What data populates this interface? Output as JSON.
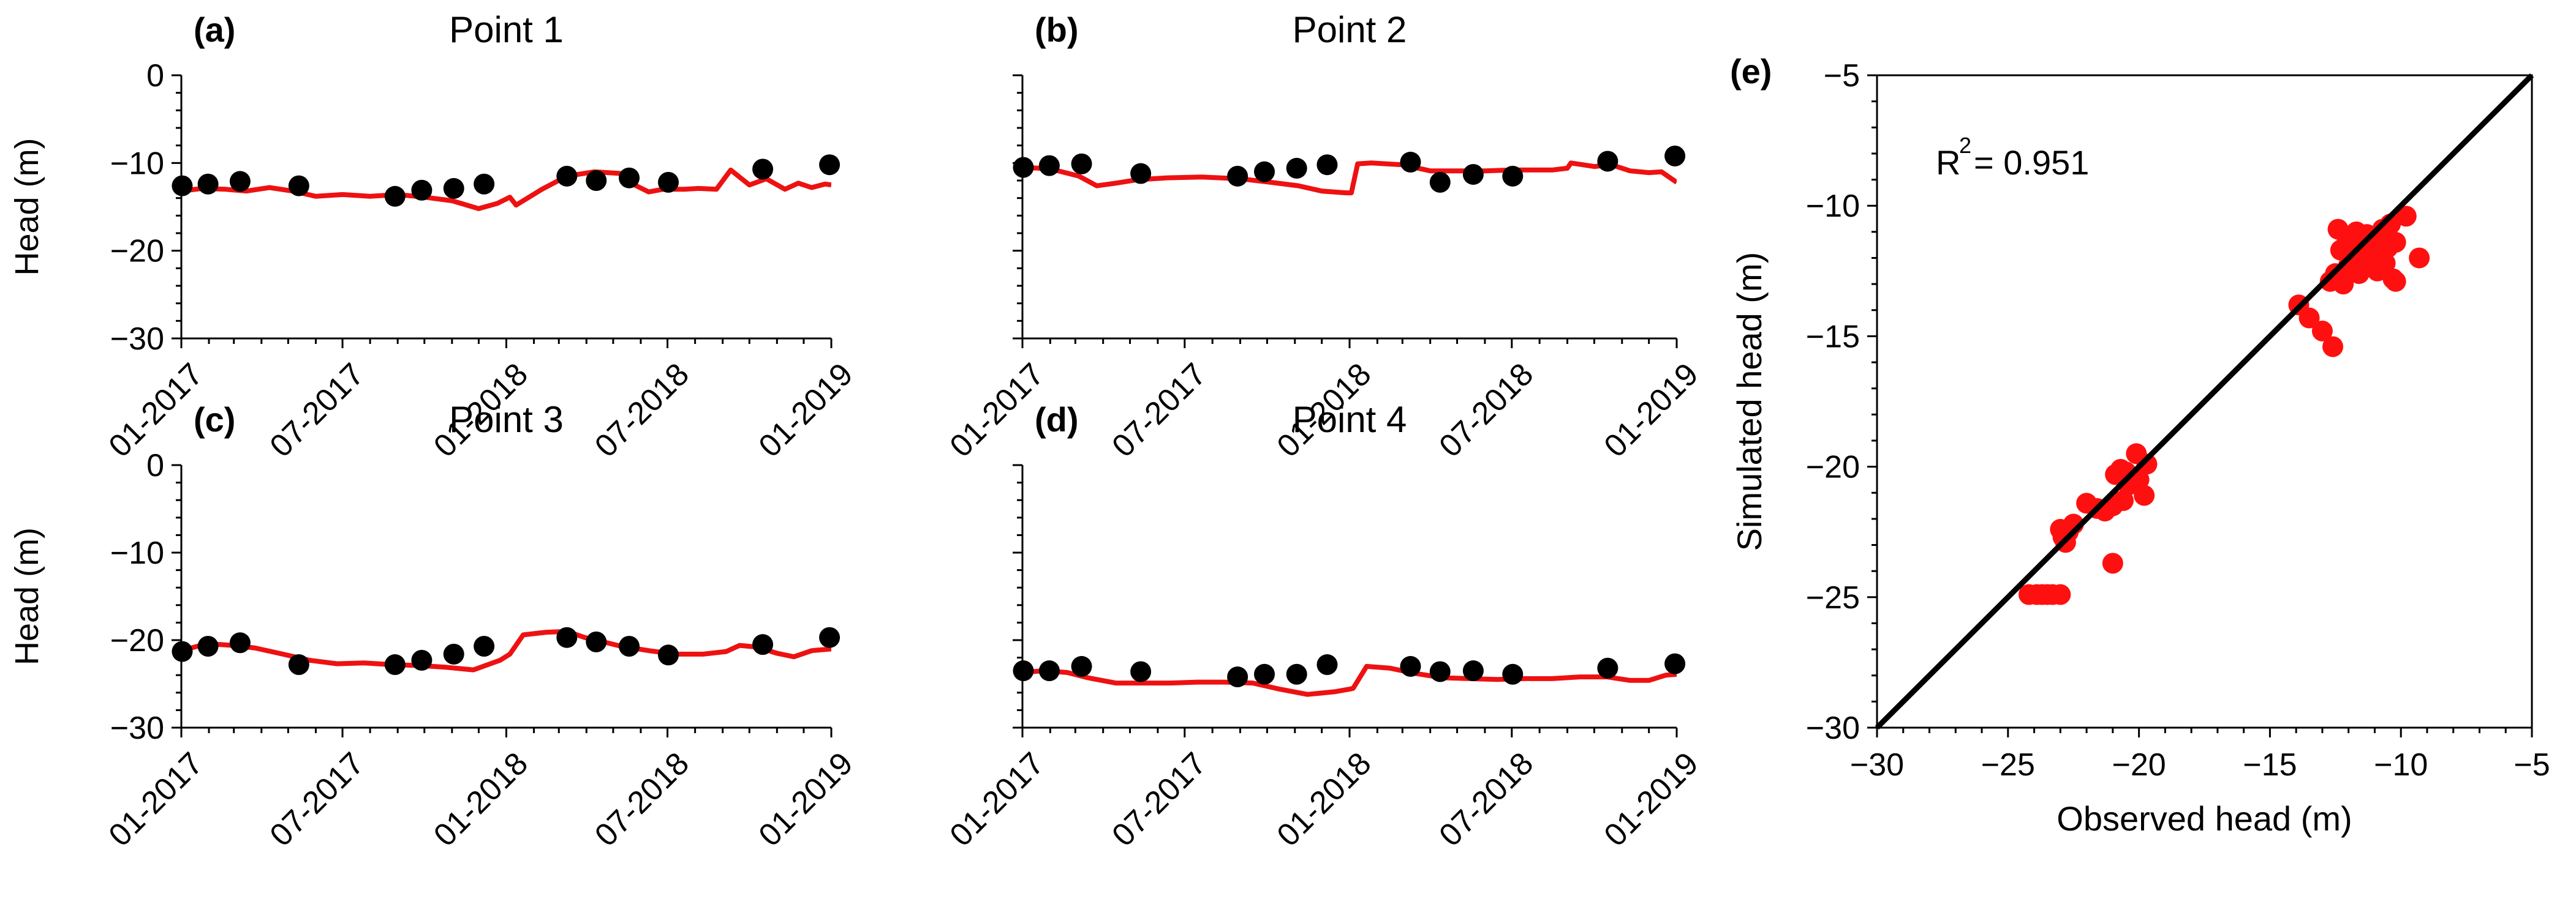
{
  "colors": {
    "observed": "#000000",
    "simulated": "#ee1111",
    "scatter": "#ff1010",
    "identity_line": "#000000"
  },
  "chart_data": [
    {
      "type": "line",
      "panel_label": "(a)",
      "title": "Point 1",
      "ylabel": "Head (m)",
      "xlabel": "",
      "xlim": [
        "2017-01-01",
        "2019-01-01"
      ],
      "ylim": [
        -30,
        0
      ],
      "yticks": [
        0,
        -10,
        -20,
        -30
      ],
      "ytick_labels": [
        "0",
        "−10",
        "−20",
        "−30"
      ],
      "xticks": [
        "2017-01-01",
        "2017-07-01",
        "2018-01-01",
        "2018-07-01",
        "2019-01-01"
      ],
      "xtick_labels": [
        "01-2017",
        "07-2017",
        "01-2018",
        "07-2018",
        "01-2019"
      ],
      "grid": false,
      "series": [
        {
          "role": "observed",
          "style": "markers",
          "x": [
            "2017-01-02",
            "2017-01-31",
            "2017-03-08",
            "2017-05-13",
            "2017-08-29",
            "2017-09-28",
            "2017-11-03",
            "2017-12-07",
            "2018-03-10",
            "2018-04-12",
            "2018-05-19",
            "2018-07-02",
            "2018-10-16",
            "2018-12-30"
          ],
          "y": [
            -12.6,
            -12.4,
            -12.1,
            -12.6,
            -13.8,
            -13.1,
            -12.9,
            -12.4,
            -11.5,
            -12.0,
            -11.7,
            -12.2,
            -10.7,
            -10.2
          ]
        },
        {
          "role": "simulated",
          "style": "line",
          "x": [
            "2017-01-01",
            "2017-01-25",
            "2017-02-20",
            "2017-03-15",
            "2017-04-10",
            "2017-05-06",
            "2017-06-01",
            "2017-07-01",
            "2017-08-01",
            "2017-09-01",
            "2017-10-01",
            "2017-11-01",
            "2017-12-01",
            "2017-12-22",
            "2018-01-05",
            "2018-01-12",
            "2018-02-10",
            "2018-03-10",
            "2018-04-10",
            "2018-05-10",
            "2018-05-25",
            "2018-06-10",
            "2018-07-01",
            "2018-07-10",
            "2018-07-20",
            "2018-08-05",
            "2018-08-25",
            "2018-09-10",
            "2018-10-01",
            "2018-10-20",
            "2018-11-10",
            "2018-11-25",
            "2018-12-10",
            "2018-12-25",
            "2019-01-01"
          ],
          "y": [
            -13.2,
            -12.9,
            -13.0,
            -13.2,
            -12.8,
            -13.2,
            -13.8,
            -13.6,
            -13.8,
            -13.6,
            -13.9,
            -14.3,
            -15.2,
            -14.6,
            -13.9,
            -14.8,
            -13.0,
            -11.5,
            -11.0,
            -11.2,
            -12.5,
            -13.3,
            -12.9,
            -13.0,
            -13.0,
            -12.9,
            -13.0,
            -10.8,
            -12.5,
            -11.8,
            -13.0,
            -12.3,
            -12.8,
            -12.4,
            -12.5
          ]
        }
      ]
    },
    {
      "type": "line",
      "panel_label": "(b)",
      "title": "Point 2",
      "ylabel": "",
      "xlabel": "",
      "xlim": [
        "2017-01-01",
        "2019-01-01"
      ],
      "ylim": [
        -30,
        0
      ],
      "yticks": [
        0,
        -10,
        -20,
        -30
      ],
      "ytick_labels": [],
      "xticks": [
        "2017-01-01",
        "2017-07-01",
        "2018-01-01",
        "2018-07-01",
        "2019-01-01"
      ],
      "xtick_labels": [
        "01-2017",
        "07-2017",
        "01-2018",
        "07-2018",
        "01-2019"
      ],
      "grid": false,
      "series": [
        {
          "role": "observed",
          "style": "markers",
          "x": [
            "2017-01-02",
            "2017-01-31",
            "2017-03-08",
            "2017-05-13",
            "2017-08-29",
            "2017-09-28",
            "2017-11-03",
            "2017-12-07",
            "2018-03-10",
            "2018-04-12",
            "2018-05-19",
            "2018-07-02",
            "2018-10-16",
            "2018-12-30"
          ],
          "y": [
            -10.5,
            -10.3,
            -10.1,
            -11.2,
            -11.5,
            -11.0,
            -10.6,
            -10.2,
            -9.9,
            -12.2,
            -11.3,
            -11.5,
            -9.8,
            -9.2
          ]
        },
        {
          "role": "simulated",
          "style": "line",
          "x": [
            "2017-01-01",
            "2017-01-20",
            "2017-02-10",
            "2017-03-05",
            "2017-03-25",
            "2017-04-15",
            "2017-05-10",
            "2017-06-10",
            "2017-07-20",
            "2017-09-01",
            "2017-10-05",
            "2017-11-05",
            "2017-12-01",
            "2017-12-28",
            "2018-01-03",
            "2018-01-10",
            "2018-01-25",
            "2018-03-01",
            "2018-04-01",
            "2018-05-01",
            "2018-06-01",
            "2018-07-01",
            "2018-08-15",
            "2018-09-01",
            "2018-09-05",
            "2018-10-01",
            "2018-10-20",
            "2018-11-10",
            "2018-12-01",
            "2018-12-15",
            "2019-01-01"
          ],
          "y": [
            -10.5,
            -10.6,
            -10.9,
            -11.5,
            -12.6,
            -12.3,
            -11.9,
            -11.7,
            -11.6,
            -11.8,
            -12.2,
            -12.6,
            -13.2,
            -13.4,
            -13.4,
            -10.1,
            -10.0,
            -10.2,
            -10.9,
            -10.9,
            -10.9,
            -10.8,
            -10.8,
            -10.6,
            -10.0,
            -10.4,
            -10.2,
            -10.9,
            -11.1,
            -11.0,
            -12.2
          ]
        }
      ]
    },
    {
      "type": "line",
      "panel_label": "(c)",
      "title": "Point 3",
      "ylabel": "Head (m)",
      "xlabel": "",
      "xlim": [
        "2017-01-01",
        "2019-01-01"
      ],
      "ylim": [
        -30,
        0
      ],
      "yticks": [
        0,
        -10,
        -20,
        -30
      ],
      "ytick_labels": [
        "0",
        "−10",
        "−20",
        "−30"
      ],
      "xticks": [
        "2017-01-01",
        "2017-07-01",
        "2018-01-01",
        "2018-07-01",
        "2019-01-01"
      ],
      "xtick_labels": [
        "01-2017",
        "07-2017",
        "01-2018",
        "07-2018",
        "01-2019"
      ],
      "grid": false,
      "series": [
        {
          "role": "observed",
          "style": "markers",
          "x": [
            "2017-01-02",
            "2017-01-31",
            "2017-03-08",
            "2017-05-13",
            "2017-08-29",
            "2017-09-28",
            "2017-11-03",
            "2017-12-07",
            "2018-03-10",
            "2018-04-12",
            "2018-05-19",
            "2018-07-02",
            "2018-10-16",
            "2018-12-30"
          ],
          "y": [
            -21.3,
            -20.7,
            -20.3,
            -22.8,
            -22.8,
            -22.3,
            -21.6,
            -20.7,
            -19.7,
            -20.2,
            -20.7,
            -21.7,
            -20.5,
            -19.7
          ]
        },
        {
          "role": "simulated",
          "style": "line",
          "x": [
            "2017-01-01",
            "2017-01-30",
            "2017-02-28",
            "2017-03-25",
            "2017-04-25",
            "2017-05-25",
            "2017-06-25",
            "2017-07-25",
            "2017-08-25",
            "2017-09-25",
            "2017-10-25",
            "2017-11-25",
            "2017-12-25",
            "2018-01-05",
            "2018-01-20",
            "2018-02-15",
            "2018-03-10",
            "2018-03-30",
            "2018-04-20",
            "2018-05-10",
            "2018-06-10",
            "2018-07-10",
            "2018-08-10",
            "2018-09-05",
            "2018-09-20",
            "2018-10-10",
            "2018-11-01",
            "2018-11-20",
            "2018-12-10",
            "2019-01-01"
          ],
          "y": [
            -21.2,
            -20.4,
            -20.6,
            -20.9,
            -21.6,
            -22.3,
            -22.7,
            -22.6,
            -22.8,
            -22.9,
            -23.1,
            -23.4,
            -22.3,
            -21.6,
            -19.4,
            -19.1,
            -19.0,
            -19.7,
            -20.2,
            -20.7,
            -21.2,
            -21.6,
            -21.6,
            -21.3,
            -20.6,
            -20.8,
            -21.5,
            -21.9,
            -21.2,
            -21.0
          ]
        }
      ]
    },
    {
      "type": "line",
      "panel_label": "(d)",
      "title": "Point 4",
      "ylabel": "",
      "xlabel": "",
      "xlim": [
        "2017-01-01",
        "2019-01-01"
      ],
      "ylim": [
        -30,
        0
      ],
      "yticks": [
        0,
        -10,
        -20,
        -30
      ],
      "ytick_labels": [],
      "xticks": [
        "2017-01-01",
        "2017-07-01",
        "2018-01-01",
        "2018-07-01",
        "2019-01-01"
      ],
      "xtick_labels": [
        "01-2017",
        "07-2017",
        "01-2018",
        "07-2018",
        "01-2019"
      ],
      "grid": false,
      "series": [
        {
          "role": "observed",
          "style": "markers",
          "x": [
            "2017-01-02",
            "2017-01-31",
            "2017-03-08",
            "2017-05-13",
            "2017-08-29",
            "2017-09-28",
            "2017-11-03",
            "2017-12-07",
            "2018-03-10",
            "2018-04-12",
            "2018-05-19",
            "2018-07-02",
            "2018-10-16",
            "2018-12-30"
          ],
          "y": [
            -23.5,
            -23.5,
            -23.0,
            -23.6,
            -24.2,
            -23.9,
            -23.9,
            -22.8,
            -23.0,
            -23.6,
            -23.5,
            -23.9,
            -23.2,
            -22.7
          ]
        },
        {
          "role": "simulated",
          "style": "line",
          "x": [
            "2017-01-01",
            "2017-01-25",
            "2017-02-20",
            "2017-03-15",
            "2017-04-15",
            "2017-05-15",
            "2017-06-15",
            "2017-07-15",
            "2017-08-15",
            "2017-09-15",
            "2017-10-15",
            "2017-11-15",
            "2017-12-15",
            "2018-01-01",
            "2018-01-05",
            "2018-01-20",
            "2018-02-15",
            "2018-03-15",
            "2018-04-15",
            "2018-05-15",
            "2018-06-15",
            "2018-07-15",
            "2018-08-15",
            "2018-09-15",
            "2018-10-15",
            "2018-11-10",
            "2018-12-01",
            "2018-12-20",
            "2019-01-01"
          ],
          "y": [
            -23.7,
            -23.5,
            -23.7,
            -24.3,
            -24.9,
            -24.9,
            -24.9,
            -24.8,
            -24.8,
            -24.9,
            -25.6,
            -26.2,
            -25.9,
            -25.6,
            -25.5,
            -23.0,
            -23.2,
            -23.8,
            -24.3,
            -24.4,
            -24.5,
            -24.4,
            -24.4,
            -24.2,
            -24.2,
            -24.6,
            -24.6,
            -24.0,
            -23.9
          ]
        }
      ]
    },
    {
      "type": "scatter",
      "panel_label": "(e)",
      "title": "",
      "xlabel": "Observed head (m)",
      "ylabel": "Simulated head (m)",
      "xlim": [
        -30,
        -5
      ],
      "ylim": [
        -30,
        -5
      ],
      "xticks": [
        -30,
        -25,
        -20,
        -15,
        -10,
        -5
      ],
      "xtick_labels": [
        "−30",
        "−25",
        "−20",
        "−15",
        "−10",
        "−5"
      ],
      "yticks": [
        -30,
        -25,
        -20,
        -15,
        -10,
        -5
      ],
      "ytick_labels": [
        "−30",
        "−25",
        "−20",
        "−15",
        "−10",
        "−5"
      ],
      "grid": false,
      "annotation": {
        "text": "R",
        "superscript": "2",
        "suffix": " = 0.951"
      },
      "identity_line": {
        "x": [
          -30,
          -5
        ],
        "y": [
          -30,
          -5
        ]
      },
      "points": {
        "x": [
          -24.2,
          -23.9,
          -23.7,
          -23.5,
          -23.3,
          -23.0,
          -23.0,
          -22.9,
          -22.7,
          -22.8,
          -22.5,
          -22.0,
          -21.6,
          -21.3,
          -21.0,
          -21.0,
          -20.7,
          -20.6,
          -20.4,
          -20.1,
          -20.0,
          -19.8,
          -19.7,
          -20.5,
          -20.9,
          -13.9,
          -13.5,
          -13.0,
          -12.7,
          -12.6,
          -12.5,
          -12.4,
          -12.2,
          -12.0,
          -11.8,
          -11.6,
          -11.5,
          -11.3,
          -11.1,
          -10.9,
          -10.7,
          -10.6,
          -10.5,
          -10.3,
          -10.2,
          -10.2,
          -9.8,
          -9.3,
          -12.1,
          -12.3,
          -11.2,
          -11.0,
          -10.8,
          -11.7,
          -10.4
        ],
        "y": [
          -24.9,
          -24.9,
          -24.9,
          -24.9,
          -24.9,
          -24.9,
          -22.4,
          -22.7,
          -22.5,
          -22.9,
          -22.2,
          -21.4,
          -21.6,
          -21.7,
          -21.5,
          -23.7,
          -20.1,
          -21.3,
          -20.7,
          -19.5,
          -20.5,
          -21.1,
          -19.9,
          -20.2,
          -20.3,
          -13.8,
          -14.3,
          -14.8,
          -12.9,
          -15.4,
          -12.6,
          -10.9,
          -13.0,
          -12.3,
          -12.0,
          -12.6,
          -11.2,
          -11.1,
          -12.1,
          -12.5,
          -10.9,
          -12.2,
          -11.6,
          -12.8,
          -11.4,
          -12.9,
          -10.4,
          -12.0,
          -11.5,
          -11.7,
          -11.9,
          -11.3,
          -12.4,
          -11.0,
          -10.7
        ]
      }
    }
  ]
}
